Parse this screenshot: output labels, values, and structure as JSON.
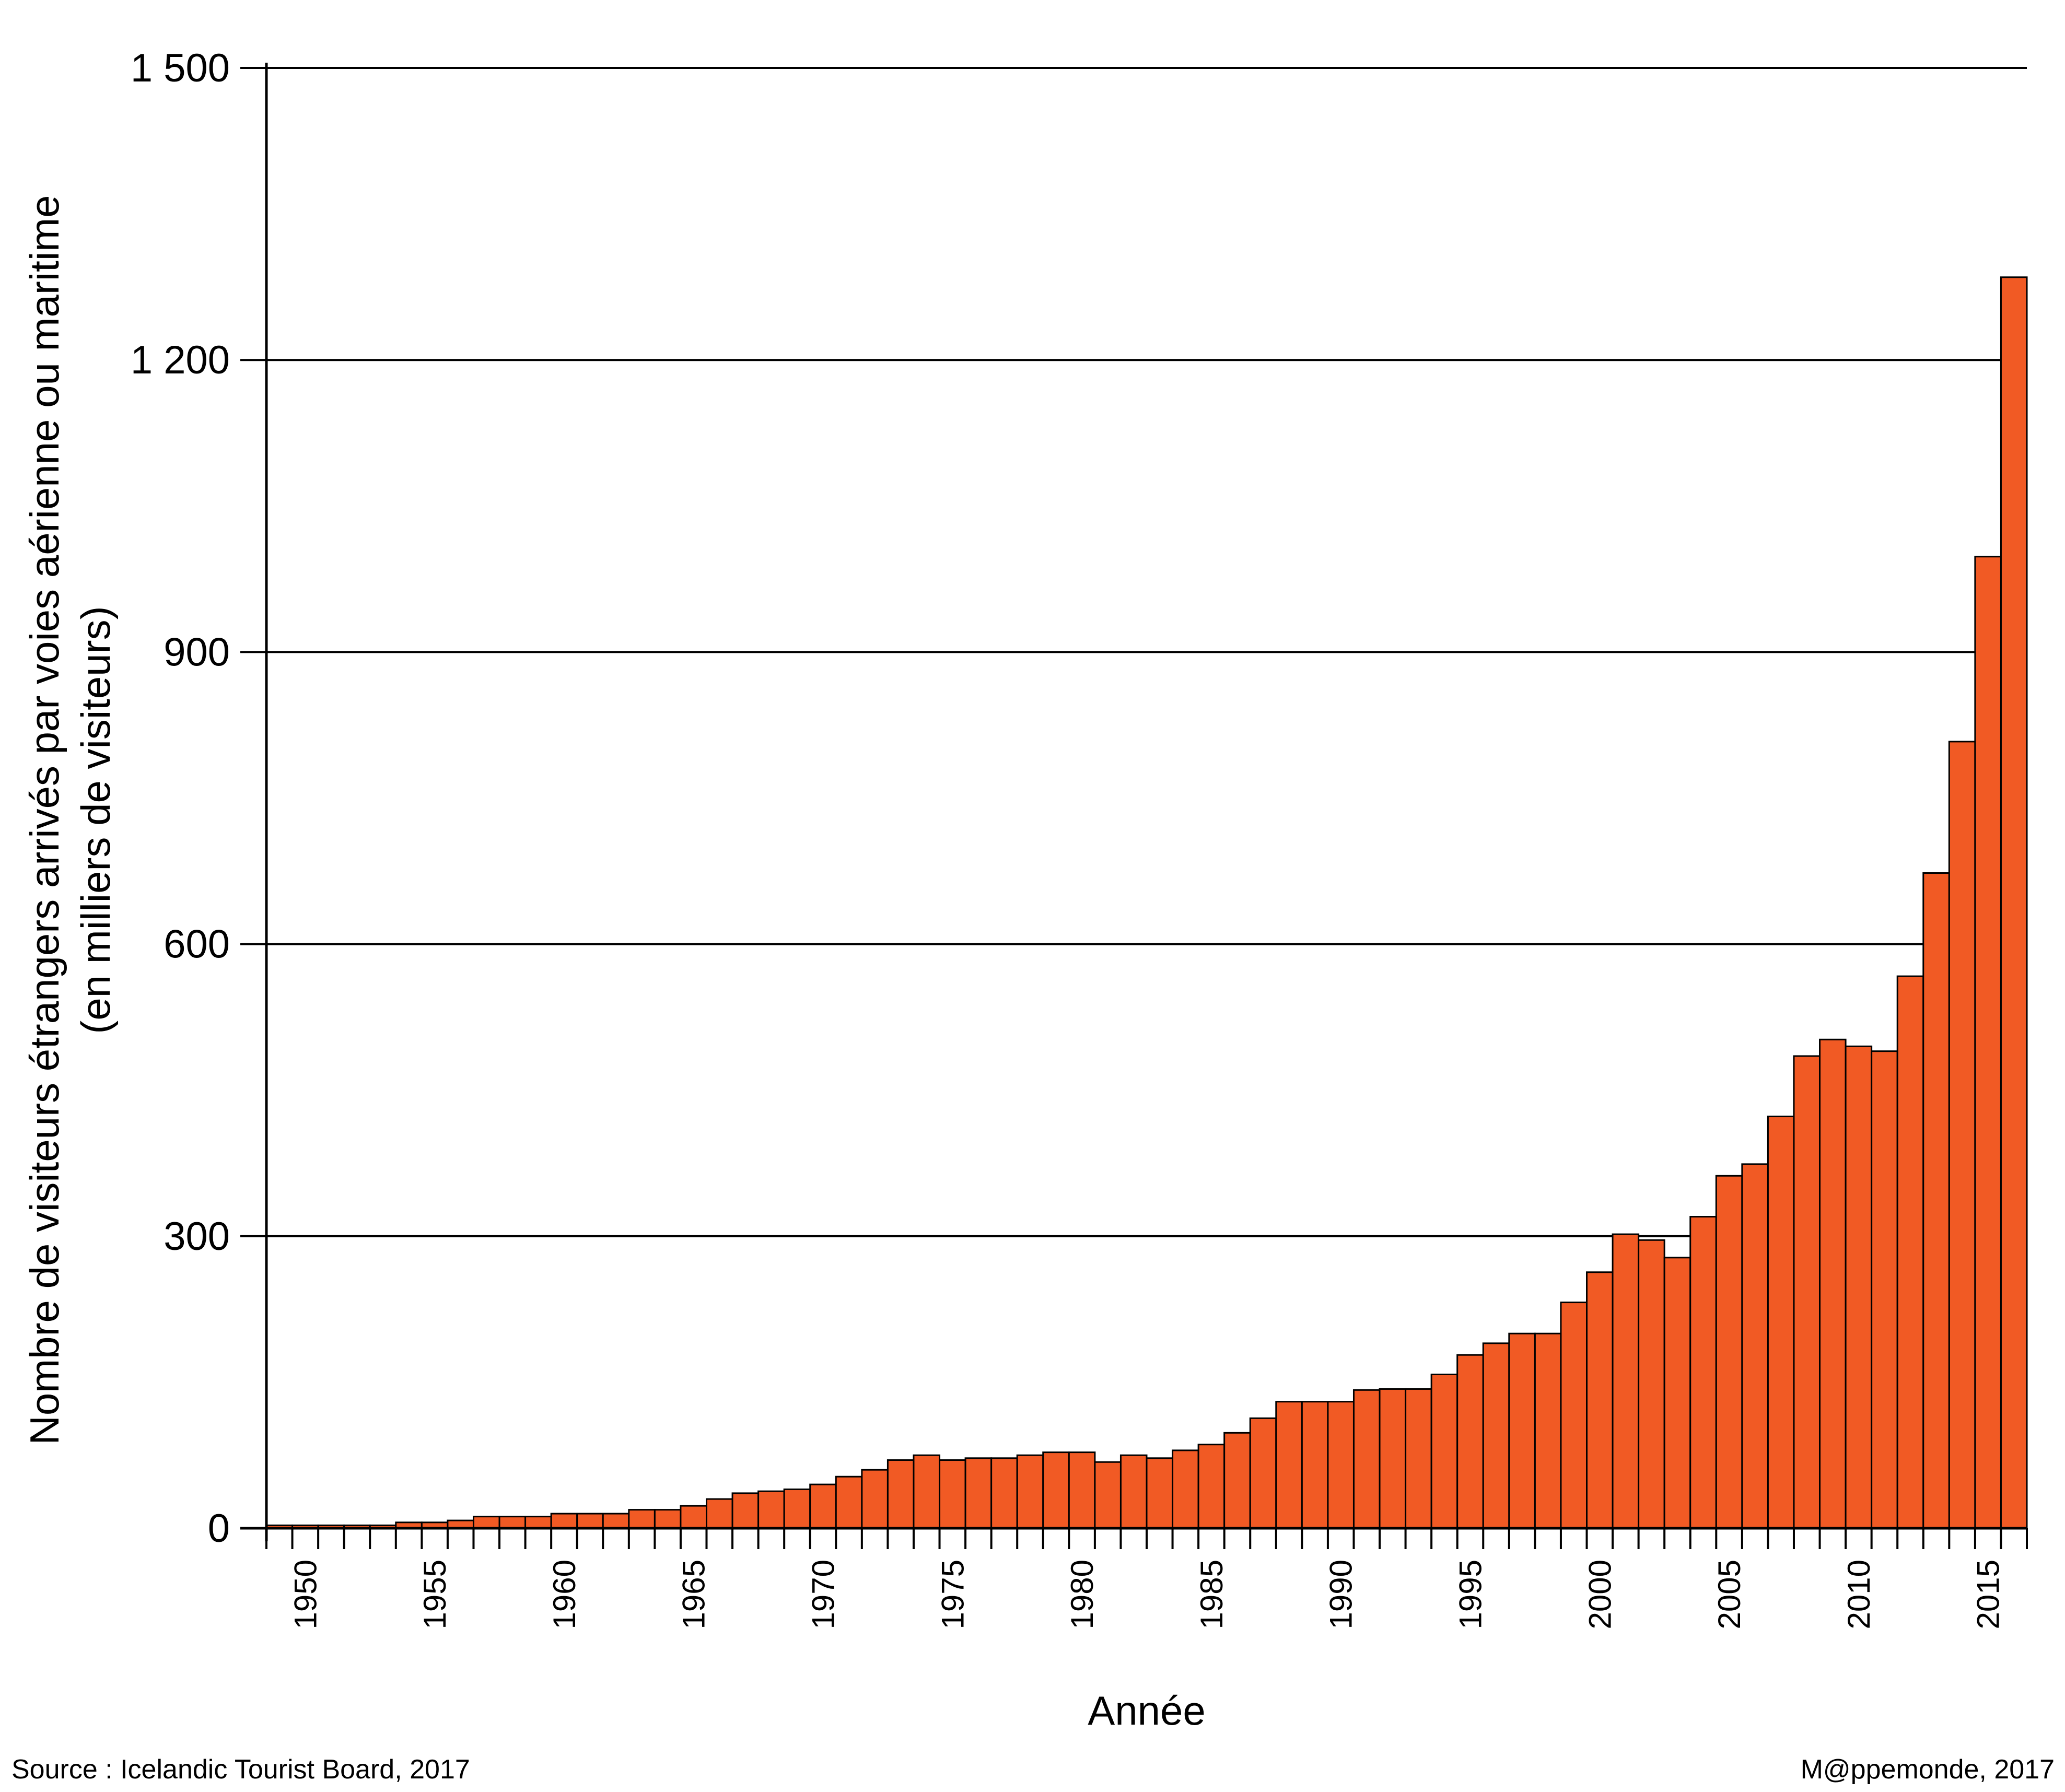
{
  "chart_data": {
    "type": "bar",
    "xlabel": "Année",
    "ylabel_lines": [
      "Nombre de visiteurs étrangers arrivés par  voies aérienne ou maritime",
      "(en milliers de visiteurs)"
    ],
    "ylim": [
      0,
      1500
    ],
    "yticks": [
      0,
      300,
      600,
      900,
      1200,
      1500
    ],
    "ytick_labels": [
      "0",
      "300",
      "600",
      "900",
      "1 200",
      "1 500"
    ],
    "xtick_labels": [
      "1950",
      "1955",
      "1960",
      "1965",
      "1970",
      "1975",
      "1980",
      "1985",
      "1990",
      "1995",
      "2000",
      "2005",
      "2010",
      "2015"
    ],
    "grid": "horizontal",
    "bar_color": "#f15a24",
    "categories": [
      1949,
      1950,
      1951,
      1952,
      1953,
      1954,
      1955,
      1956,
      1957,
      1958,
      1959,
      1960,
      1961,
      1962,
      1963,
      1964,
      1965,
      1966,
      1967,
      1968,
      1969,
      1970,
      1971,
      1972,
      1973,
      1974,
      1975,
      1976,
      1977,
      1978,
      1979,
      1980,
      1981,
      1982,
      1983,
      1984,
      1985,
      1986,
      1987,
      1988,
      1989,
      1990,
      1991,
      1992,
      1993,
      1994,
      1995,
      1996,
      1997,
      1998,
      1999,
      2000,
      2001,
      2002,
      2003,
      2004,
      2005,
      2006,
      2007,
      2008,
      2009,
      2010,
      2011,
      2012,
      2013,
      2014,
      2015,
      2016
    ],
    "values": [
      3,
      3,
      3,
      3,
      3,
      6,
      6,
      8,
      12,
      12,
      12,
      15,
      15,
      15,
      19,
      19,
      23,
      30,
      36,
      38,
      40,
      45,
      53,
      60,
      70,
      75,
      70,
      72,
      72,
      75,
      78,
      78,
      68,
      75,
      72,
      80,
      86,
      98,
      113,
      130,
      130,
      130,
      142,
      143,
      143,
      158,
      178,
      190,
      200,
      200,
      232,
      263,
      302,
      296,
      278,
      320,
      362,
      374,
      423,
      485,
      502,
      495,
      490,
      567,
      673,
      808,
      998,
      1285
    ]
  },
  "source": "Source : Icelandic Tourist Board, 2017",
  "credit": "M@ppemonde, 2017"
}
